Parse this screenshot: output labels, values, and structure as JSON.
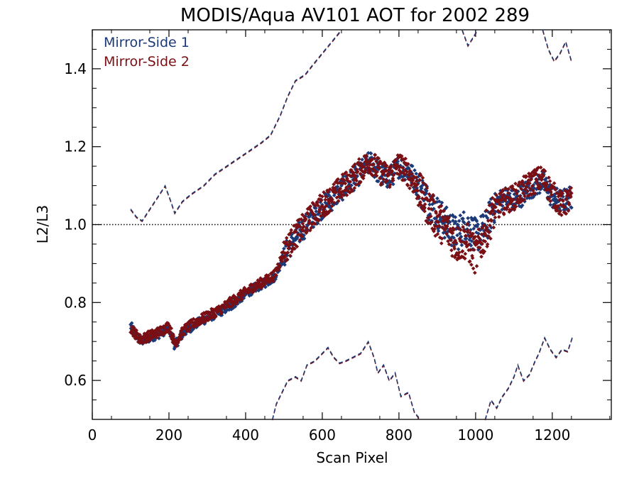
{
  "chart_data": {
    "type": "scatter",
    "title": "MODIS/Aqua AV101 AOT for 2002 289",
    "xlabel": "Scan Pixel",
    "ylabel": "L2/L3",
    "xlim": [
      0,
      1354
    ],
    "ylim": [
      0.5,
      1.5
    ],
    "x_ticks": [
      0,
      200,
      400,
      600,
      800,
      1000,
      1200
    ],
    "x_tick_labels": [
      "0",
      "200",
      "400",
      "600",
      "800",
      "1000",
      "1200"
    ],
    "y_ticks": [
      0.6,
      0.8,
      1.0,
      1.2,
      1.4
    ],
    "y_tick_labels": [
      "0.6",
      "0.8",
      "1.0",
      "1.2",
      "1.4"
    ],
    "reference_line": {
      "y": 1.0,
      "style": "dotted"
    },
    "legend_position": "top-left",
    "colors": {
      "side1": "#1c3a78",
      "side2": "#7a0f14"
    },
    "series": [
      {
        "name": "Mirror-Side 1",
        "color": "#1c3a78",
        "mean_points": [
          [
            100,
            0.74
          ],
          [
            125,
            0.7
          ],
          [
            150,
            0.71
          ],
          [
            175,
            0.72
          ],
          [
            200,
            0.735
          ],
          [
            215,
            0.69
          ],
          [
            240,
            0.725
          ],
          [
            270,
            0.745
          ],
          [
            300,
            0.76
          ],
          [
            330,
            0.775
          ],
          [
            360,
            0.79
          ],
          [
            390,
            0.815
          ],
          [
            420,
            0.835
          ],
          [
            450,
            0.85
          ],
          [
            475,
            0.865
          ],
          [
            500,
            0.92
          ],
          [
            525,
            0.96
          ],
          [
            550,
            0.99
          ],
          [
            575,
            1.02
          ],
          [
            600,
            1.045
          ],
          [
            625,
            1.065
          ],
          [
            650,
            1.09
          ],
          [
            675,
            1.11
          ],
          [
            700,
            1.135
          ],
          [
            725,
            1.16
          ],
          [
            750,
            1.13
          ],
          [
            775,
            1.12
          ],
          [
            800,
            1.15
          ],
          [
            825,
            1.14
          ],
          [
            850,
            1.1
          ],
          [
            875,
            1.06
          ],
          [
            900,
            1.03
          ],
          [
            925,
            1.0
          ],
          [
            950,
            0.975
          ],
          [
            975,
            1.0
          ],
          [
            1000,
            0.97
          ],
          [
            1025,
            0.99
          ],
          [
            1050,
            1.05
          ],
          [
            1075,
            1.07
          ],
          [
            1100,
            1.06
          ],
          [
            1125,
            1.08
          ],
          [
            1150,
            1.1
          ],
          [
            1175,
            1.11
          ],
          [
            1200,
            1.07
          ],
          [
            1225,
            1.06
          ],
          [
            1250,
            1.07
          ]
        ],
        "upper_dashed": [
          [
            100,
            1.04
          ],
          [
            115,
            1.02
          ],
          [
            130,
            1.01
          ],
          [
            150,
            1.04
          ],
          [
            170,
            1.07
          ],
          [
            190,
            1.1
          ],
          [
            205,
            1.06
          ],
          [
            215,
            1.03
          ],
          [
            235,
            1.06
          ],
          [
            260,
            1.08
          ],
          [
            290,
            1.1
          ],
          [
            320,
            1.13
          ],
          [
            350,
            1.15
          ],
          [
            380,
            1.17
          ],
          [
            410,
            1.19
          ],
          [
            440,
            1.21
          ],
          [
            465,
            1.23
          ],
          [
            490,
            1.28
          ],
          [
            510,
            1.33
          ],
          [
            530,
            1.37
          ],
          [
            555,
            1.385
          ],
          [
            575,
            1.41
          ],
          [
            600,
            1.44
          ],
          [
            625,
            1.47
          ],
          [
            650,
            1.5
          ]
        ],
        "upper_dashed_right": [
          [
            965,
            1.5
          ],
          [
            980,
            1.46
          ],
          [
            993,
            1.48
          ],
          [
            1005,
            1.5
          ]
        ],
        "upper_dashed_far": [
          [
            1175,
            1.5
          ],
          [
            1190,
            1.45
          ],
          [
            1205,
            1.42
          ],
          [
            1220,
            1.44
          ],
          [
            1235,
            1.47
          ],
          [
            1250,
            1.42
          ]
        ],
        "lower_dashed_left": [
          [
            470,
            0.5
          ],
          [
            480,
            0.54
          ],
          [
            495,
            0.57
          ],
          [
            510,
            0.6
          ],
          [
            530,
            0.61
          ],
          [
            545,
            0.6
          ],
          [
            560,
            0.64
          ],
          [
            580,
            0.65
          ],
          [
            600,
            0.67
          ],
          [
            615,
            0.685
          ],
          [
            630,
            0.66
          ],
          [
            645,
            0.645
          ],
          [
            660,
            0.65
          ],
          [
            680,
            0.66
          ],
          [
            700,
            0.67
          ],
          [
            720,
            0.7
          ],
          [
            735,
            0.66
          ],
          [
            745,
            0.62
          ],
          [
            760,
            0.64
          ],
          [
            775,
            0.6
          ],
          [
            790,
            0.62
          ],
          [
            805,
            0.56
          ],
          [
            825,
            0.57
          ],
          [
            840,
            0.52
          ],
          [
            855,
            0.5
          ]
        ],
        "lower_dashed_right": [
          [
            1025,
            0.5
          ],
          [
            1040,
            0.55
          ],
          [
            1055,
            0.53
          ],
          [
            1070,
            0.56
          ],
          [
            1085,
            0.58
          ],
          [
            1100,
            0.61
          ],
          [
            1110,
            0.64
          ],
          [
            1125,
            0.6
          ],
          [
            1140,
            0.615
          ],
          [
            1155,
            0.65
          ],
          [
            1165,
            0.67
          ],
          [
            1180,
            0.71
          ],
          [
            1195,
            0.68
          ],
          [
            1210,
            0.66
          ],
          [
            1225,
            0.68
          ],
          [
            1240,
            0.675
          ],
          [
            1252,
            0.71
          ]
        ]
      },
      {
        "name": "Mirror-Side 2",
        "color": "#7a0f14",
        "mean_points": [
          [
            100,
            0.735
          ],
          [
            125,
            0.705
          ],
          [
            150,
            0.715
          ],
          [
            175,
            0.725
          ],
          [
            200,
            0.74
          ],
          [
            215,
            0.695
          ],
          [
            240,
            0.73
          ],
          [
            270,
            0.75
          ],
          [
            300,
            0.765
          ],
          [
            330,
            0.78
          ],
          [
            360,
            0.8
          ],
          [
            390,
            0.82
          ],
          [
            420,
            0.84
          ],
          [
            450,
            0.855
          ],
          [
            475,
            0.87
          ],
          [
            500,
            0.93
          ],
          [
            525,
            0.965
          ],
          [
            550,
            0.995
          ],
          [
            575,
            1.025
          ],
          [
            600,
            1.05
          ],
          [
            625,
            1.07
          ],
          [
            650,
            1.095
          ],
          [
            675,
            1.115
          ],
          [
            700,
            1.14
          ],
          [
            725,
            1.165
          ],
          [
            750,
            1.135
          ],
          [
            775,
            1.125
          ],
          [
            800,
            1.155
          ],
          [
            825,
            1.13
          ],
          [
            850,
            1.09
          ],
          [
            875,
            1.05
          ],
          [
            900,
            1.01
          ],
          [
            925,
            0.99
          ],
          [
            950,
            0.95
          ],
          [
            975,
            0.96
          ],
          [
            1000,
            0.92
          ],
          [
            1025,
            0.98
          ],
          [
            1050,
            1.04
          ],
          [
            1075,
            1.06
          ],
          [
            1100,
            1.07
          ],
          [
            1125,
            1.09
          ],
          [
            1150,
            1.11
          ],
          [
            1175,
            1.12
          ],
          [
            1200,
            1.08
          ],
          [
            1225,
            1.05
          ],
          [
            1250,
            1.065
          ]
        ]
      }
    ]
  }
}
